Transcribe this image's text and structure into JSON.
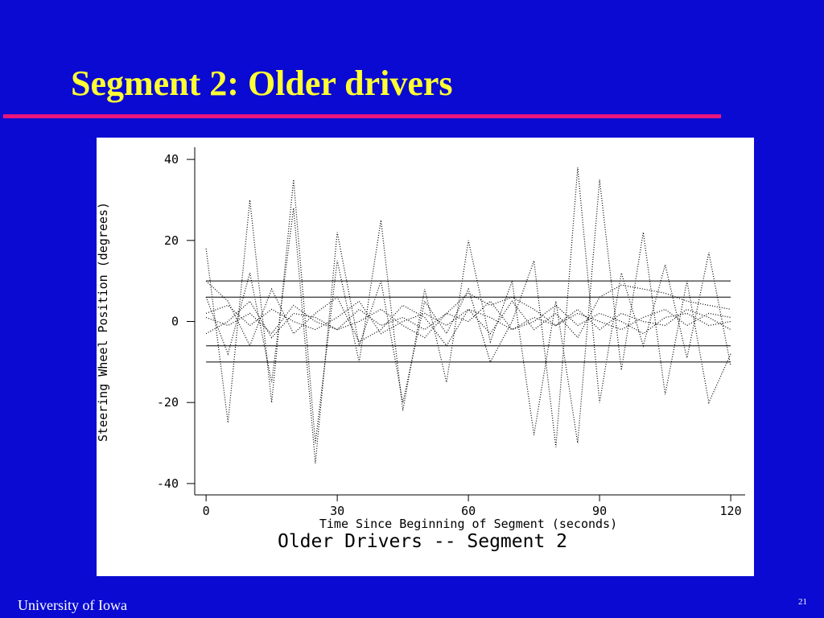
{
  "slide": {
    "title": "Segment 2: Older drivers",
    "footer": "University of Iowa",
    "page_number": "21"
  },
  "chart_data": {
    "type": "line",
    "title": "Older Drivers -- Segment 2",
    "x_label": "Time Since Beginning of Segment (seconds)",
    "y_label": "Steering Wheel Position (degrees)",
    "xlim": [
      -2.6,
      123.3
    ],
    "ylim": [
      -42.8,
      43
    ],
    "xticks": [
      0,
      30,
      60,
      90,
      120
    ],
    "yticks": [
      40,
      20,
      0,
      -20,
      -40
    ],
    "reference_lines": [
      10,
      6,
      -6,
      -10
    ],
    "x": [
      0,
      5,
      10,
      15,
      20,
      25,
      30,
      35,
      40,
      45,
      50,
      55,
      60,
      65,
      70,
      75,
      80,
      85,
      90,
      95,
      100,
      105,
      110,
      115,
      120
    ],
    "series": [
      {
        "color": "#000000",
        "values": [
          2,
          4,
          -1,
          3,
          0,
          -2,
          1,
          5,
          -3,
          0,
          2,
          -1,
          3,
          1,
          -2,
          0,
          4,
          -1,
          2,
          0,
          -3,
          1,
          2,
          -1,
          0
        ]
      },
      {
        "color": "#000000",
        "values": [
          -3,
          0,
          5,
          -4,
          2,
          1,
          -2,
          0,
          3,
          -1,
          -4,
          2,
          0,
          5,
          -2,
          1,
          -1,
          3,
          -2,
          2,
          0,
          -1,
          3,
          1,
          -2
        ]
      },
      {
        "color": "#000000",
        "values": [
          18,
          -25,
          30,
          -20,
          35,
          -30,
          15,
          -10,
          25,
          -22,
          8,
          -15,
          20,
          -5,
          10,
          -28,
          5,
          -30,
          35,
          -12,
          22,
          -18,
          10,
          -20,
          -8
        ]
      },
      {
        "color": "#000000",
        "values": [
          6,
          -8,
          12,
          -15,
          28,
          -35,
          22,
          -6,
          10,
          -20,
          5,
          -3,
          8,
          -10,
          0,
          15,
          -31,
          38,
          -20,
          12,
          -6,
          14,
          -9,
          17,
          -11
        ]
      },
      {
        "color": "#000000",
        "values": [
          1,
          -1,
          2,
          -3,
          4,
          0,
          -2,
          3,
          -1,
          1,
          -2,
          2,
          7,
          4,
          6,
          3,
          -1,
          2,
          0,
          -2,
          1,
          3,
          -1,
          2,
          1
        ]
      },
      {
        "color": "#000000",
        "values": [
          10,
          5,
          -6,
          8,
          -3,
          2,
          6,
          -5,
          -2,
          4,
          1,
          -6,
          3,
          -3,
          5,
          -2,
          2,
          -4,
          6,
          9,
          8,
          7,
          5,
          4,
          3
        ]
      }
    ]
  }
}
